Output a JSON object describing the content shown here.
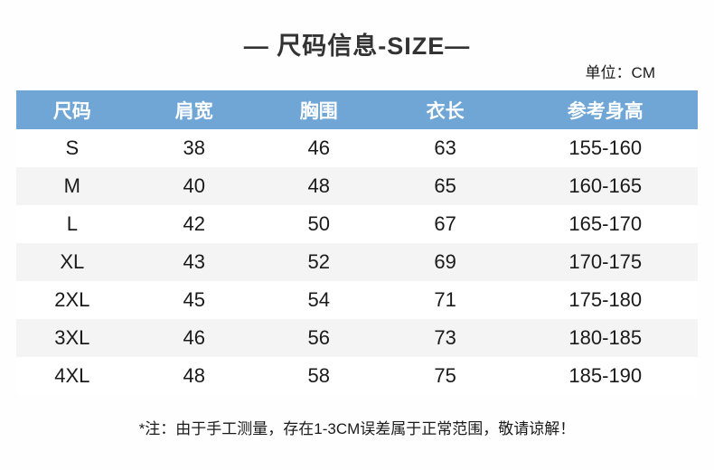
{
  "header": {
    "title": "— 尺码信息-SIZE—",
    "unit_label": "单位：CM"
  },
  "chart_data": {
    "type": "table",
    "title": "— 尺码信息-SIZE—",
    "unit": "CM",
    "columns": [
      "尺码",
      "肩宽",
      "胸围",
      "衣长",
      "参考身高"
    ],
    "rows": [
      [
        "S",
        38,
        46,
        63,
        "155-160"
      ],
      [
        "M",
        40,
        48,
        65,
        "160-165"
      ],
      [
        "L",
        42,
        50,
        67,
        "165-170"
      ],
      [
        "XL",
        43,
        52,
        69,
        "170-175"
      ],
      [
        "2XL",
        45,
        54,
        71,
        "175-180"
      ],
      [
        "3XL",
        46,
        56,
        73,
        "180-185"
      ],
      [
        "4XL",
        48,
        58,
        75,
        "185-190"
      ]
    ],
    "layout": {
      "striped": true,
      "stripe_pattern": "even rows white, odd rows light gray",
      "header_style": "solid blue bar, white bold text, centered columns"
    }
  },
  "footer": {
    "note": "*注：由于手工测量，存在1-3CM误差属于正常范围，敬请谅解！"
  },
  "colors": {
    "page_bg": "#FEFEFE",
    "header_bg": "#6FA6D6",
    "header_text": "#FFFFFF",
    "stripe_bg": "#F4F4F4",
    "row_bg": "#FFFFFF",
    "title_text": "#333333",
    "body_text": "#1A1A1A"
  }
}
